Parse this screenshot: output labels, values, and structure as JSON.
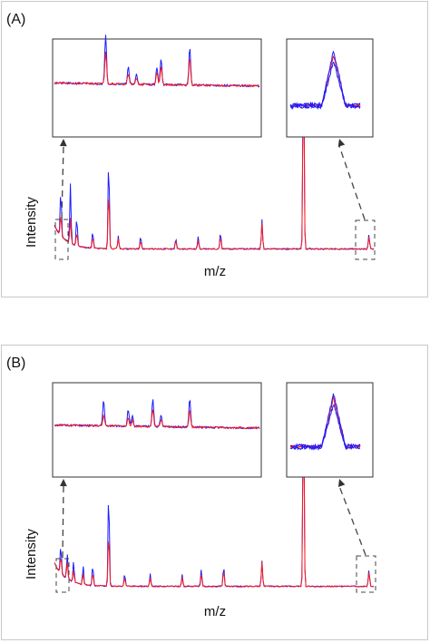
{
  "colors": {
    "series_red": "#ff1a1a",
    "series_blue": "#1a1aff",
    "frame": "#333333",
    "dash": "#444444"
  },
  "chart_data": [
    {
      "type": "line",
      "panel_label": "(A)",
      "xlabel": "m/z",
      "ylabel": "Intensity",
      "grid": false,
      "series": [
        {
          "color": "red",
          "values": "mass spectrum"
        },
        {
          "color": "blue",
          "values": "mass spectrum"
        }
      ],
      "main_peaks": [
        {
          "x": 0.02,
          "red": 0.1,
          "blue": 0.22
        },
        {
          "x": 0.05,
          "red": 0.12,
          "blue": 0.28
        },
        {
          "x": 0.07,
          "red": 0.06,
          "blue": 0.14
        },
        {
          "x": 0.12,
          "red": 0.05,
          "blue": 0.08
        },
        {
          "x": 0.17,
          "red": 0.28,
          "blue": 0.44
        },
        {
          "x": 0.2,
          "red": 0.05,
          "blue": 0.06
        },
        {
          "x": 0.27,
          "red": 0.04,
          "blue": 0.06
        },
        {
          "x": 0.38,
          "red": 0.04,
          "blue": 0.05
        },
        {
          "x": 0.45,
          "red": 0.04,
          "blue": 0.06
        },
        {
          "x": 0.52,
          "red": 0.06,
          "blue": 0.08
        },
        {
          "x": 0.65,
          "red": 0.12,
          "blue": 0.14
        },
        {
          "x": 0.78,
          "red": 0.86,
          "blue": 0.98
        },
        {
          "x": 0.985,
          "red": 0.06,
          "blue": 0.07
        }
      ],
      "inset_left_peaks": [
        {
          "x": 0.25,
          "red": 0.55,
          "blue": 0.85
        },
        {
          "x": 0.36,
          "red": 0.18,
          "blue": 0.3
        },
        {
          "x": 0.4,
          "red": 0.1,
          "blue": 0.18
        },
        {
          "x": 0.5,
          "red": 0.2,
          "blue": 0.3
        },
        {
          "x": 0.52,
          "red": 0.3,
          "blue": 0.45
        },
        {
          "x": 0.66,
          "red": 0.45,
          "blue": 0.65
        }
      ]
    },
    {
      "type": "line",
      "panel_label": "(B)",
      "xlabel": "m/z",
      "ylabel": "Intensity",
      "grid": false,
      "series": [
        {
          "color": "red",
          "values": "mass spectrum"
        },
        {
          "color": "blue",
          "values": "mass spectrum"
        }
      ],
      "main_peaks": [
        {
          "x": 0.02,
          "red": 0.08,
          "blue": 0.14
        },
        {
          "x": 0.04,
          "red": 0.08,
          "blue": 0.12
        },
        {
          "x": 0.06,
          "red": 0.06,
          "blue": 0.1
        },
        {
          "x": 0.09,
          "red": 0.05,
          "blue": 0.09
        },
        {
          "x": 0.12,
          "red": 0.06,
          "blue": 0.1
        },
        {
          "x": 0.17,
          "red": 0.26,
          "blue": 0.47
        },
        {
          "x": 0.22,
          "red": 0.04,
          "blue": 0.06
        },
        {
          "x": 0.3,
          "red": 0.04,
          "blue": 0.06
        },
        {
          "x": 0.4,
          "red": 0.04,
          "blue": 0.06
        },
        {
          "x": 0.46,
          "red": 0.06,
          "blue": 0.08
        },
        {
          "x": 0.53,
          "red": 0.08,
          "blue": 0.1
        },
        {
          "x": 0.65,
          "red": 0.12,
          "blue": 0.12
        },
        {
          "x": 0.78,
          "red": 0.86,
          "blue": 0.98
        },
        {
          "x": 0.985,
          "red": 0.07,
          "blue": 0.08
        }
      ],
      "inset_left_peaks": [
        {
          "x": 0.24,
          "red": 0.2,
          "blue": 0.45
        },
        {
          "x": 0.36,
          "red": 0.15,
          "blue": 0.3
        },
        {
          "x": 0.38,
          "red": 0.1,
          "blue": 0.2
        },
        {
          "x": 0.48,
          "red": 0.3,
          "blue": 0.5
        },
        {
          "x": 0.52,
          "red": 0.12,
          "blue": 0.2
        },
        {
          "x": 0.66,
          "red": 0.3,
          "blue": 0.5
        }
      ]
    }
  ]
}
